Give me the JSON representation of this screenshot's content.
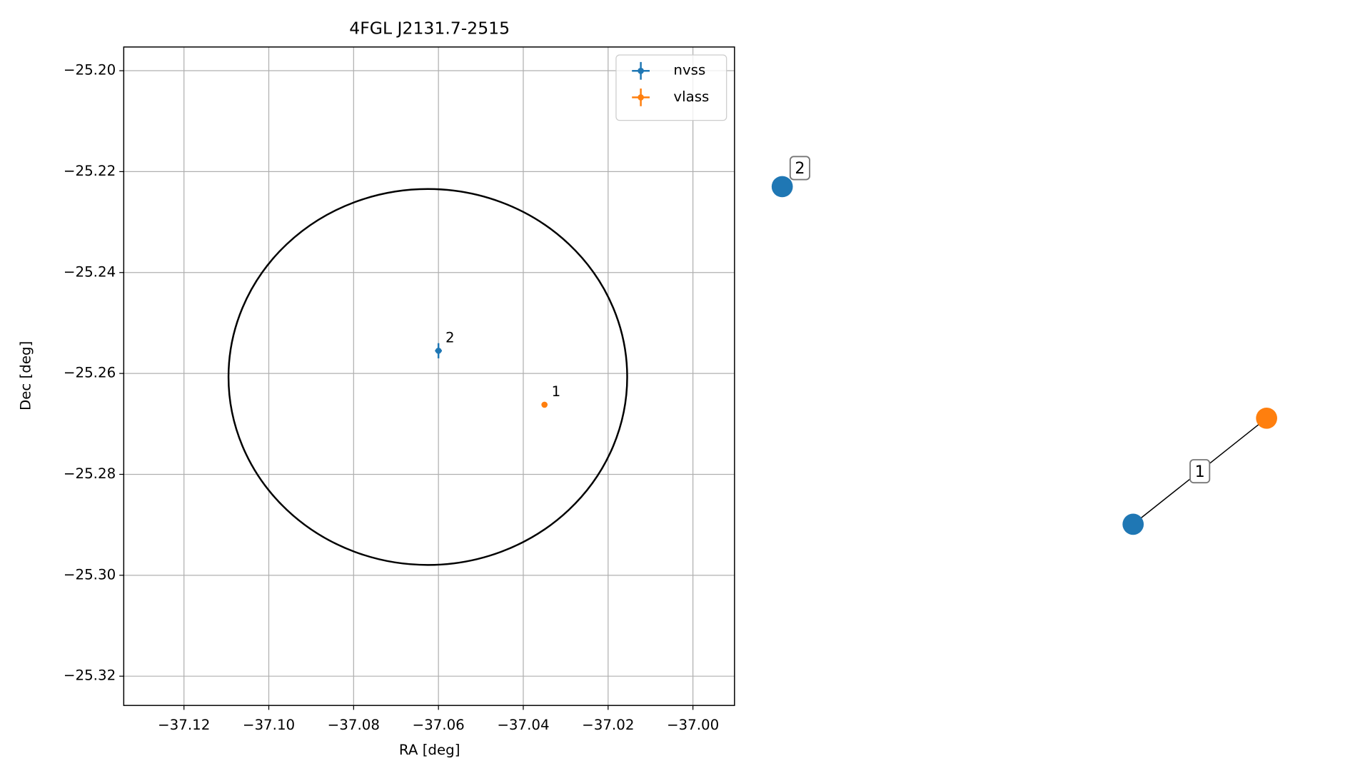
{
  "chart_data": [
    {
      "type": "scatter",
      "title": "4FGL J2131.7-2515",
      "xlabel": "RA [deg]",
      "ylabel": "Dec [deg]",
      "xlim": [
        -37.1342,
        -36.9902
      ],
      "ylim": [
        -25.3258,
        -25.1953
      ],
      "xticks": [
        {
          "value": -37.12,
          "label": "−37.12"
        },
        {
          "value": -37.1,
          "label": "−37.10"
        },
        {
          "value": -37.08,
          "label": "−37.08"
        },
        {
          "value": -37.06,
          "label": "−37.06"
        },
        {
          "value": -37.04,
          "label": "−37.04"
        },
        {
          "value": -37.02,
          "label": "−37.02"
        },
        {
          "value": -37.0,
          "label": "−37.00"
        }
      ],
      "yticks": [
        {
          "value": -25.2,
          "label": "−25.20"
        },
        {
          "value": -25.22,
          "label": "−25.22"
        },
        {
          "value": -25.24,
          "label": "−25.24"
        },
        {
          "value": -25.26,
          "label": "−25.26"
        },
        {
          "value": -25.28,
          "label": "−25.28"
        },
        {
          "value": -25.3,
          "label": "−25.30"
        },
        {
          "value": -25.32,
          "label": "−25.32"
        }
      ],
      "grid": true,
      "legend": "upper right",
      "series": [
        {
          "name": "nvss",
          "color": "#1f77b4",
          "x": [
            -37.06
          ],
          "values": [
            -25.2555
          ],
          "xerr": [
            0.0008
          ],
          "yerr": [
            0.0015
          ],
          "annotations": [
            "2"
          ]
        },
        {
          "name": "vlass",
          "color": "#ff7f0e",
          "x": [
            -37.035
          ],
          "values": [
            -25.2662
          ],
          "xerr": [
            0.0003
          ],
          "yerr": [
            0.0004
          ],
          "annotations": [
            "1"
          ]
        }
      ],
      "ellipse": {
        "center": [
          -37.0625,
          -25.2607
        ],
        "width": 0.094,
        "height": 0.0745,
        "color": "#000000"
      }
    },
    {
      "type": "graph",
      "nodes": [
        {
          "label": "2",
          "color": "#1f77b4"
        },
        {
          "color": "#1f77b4"
        },
        {
          "color": "#ff7f0e"
        }
      ],
      "edges": [
        {
          "source": 1,
          "target": 2,
          "label": "1"
        }
      ]
    }
  ]
}
